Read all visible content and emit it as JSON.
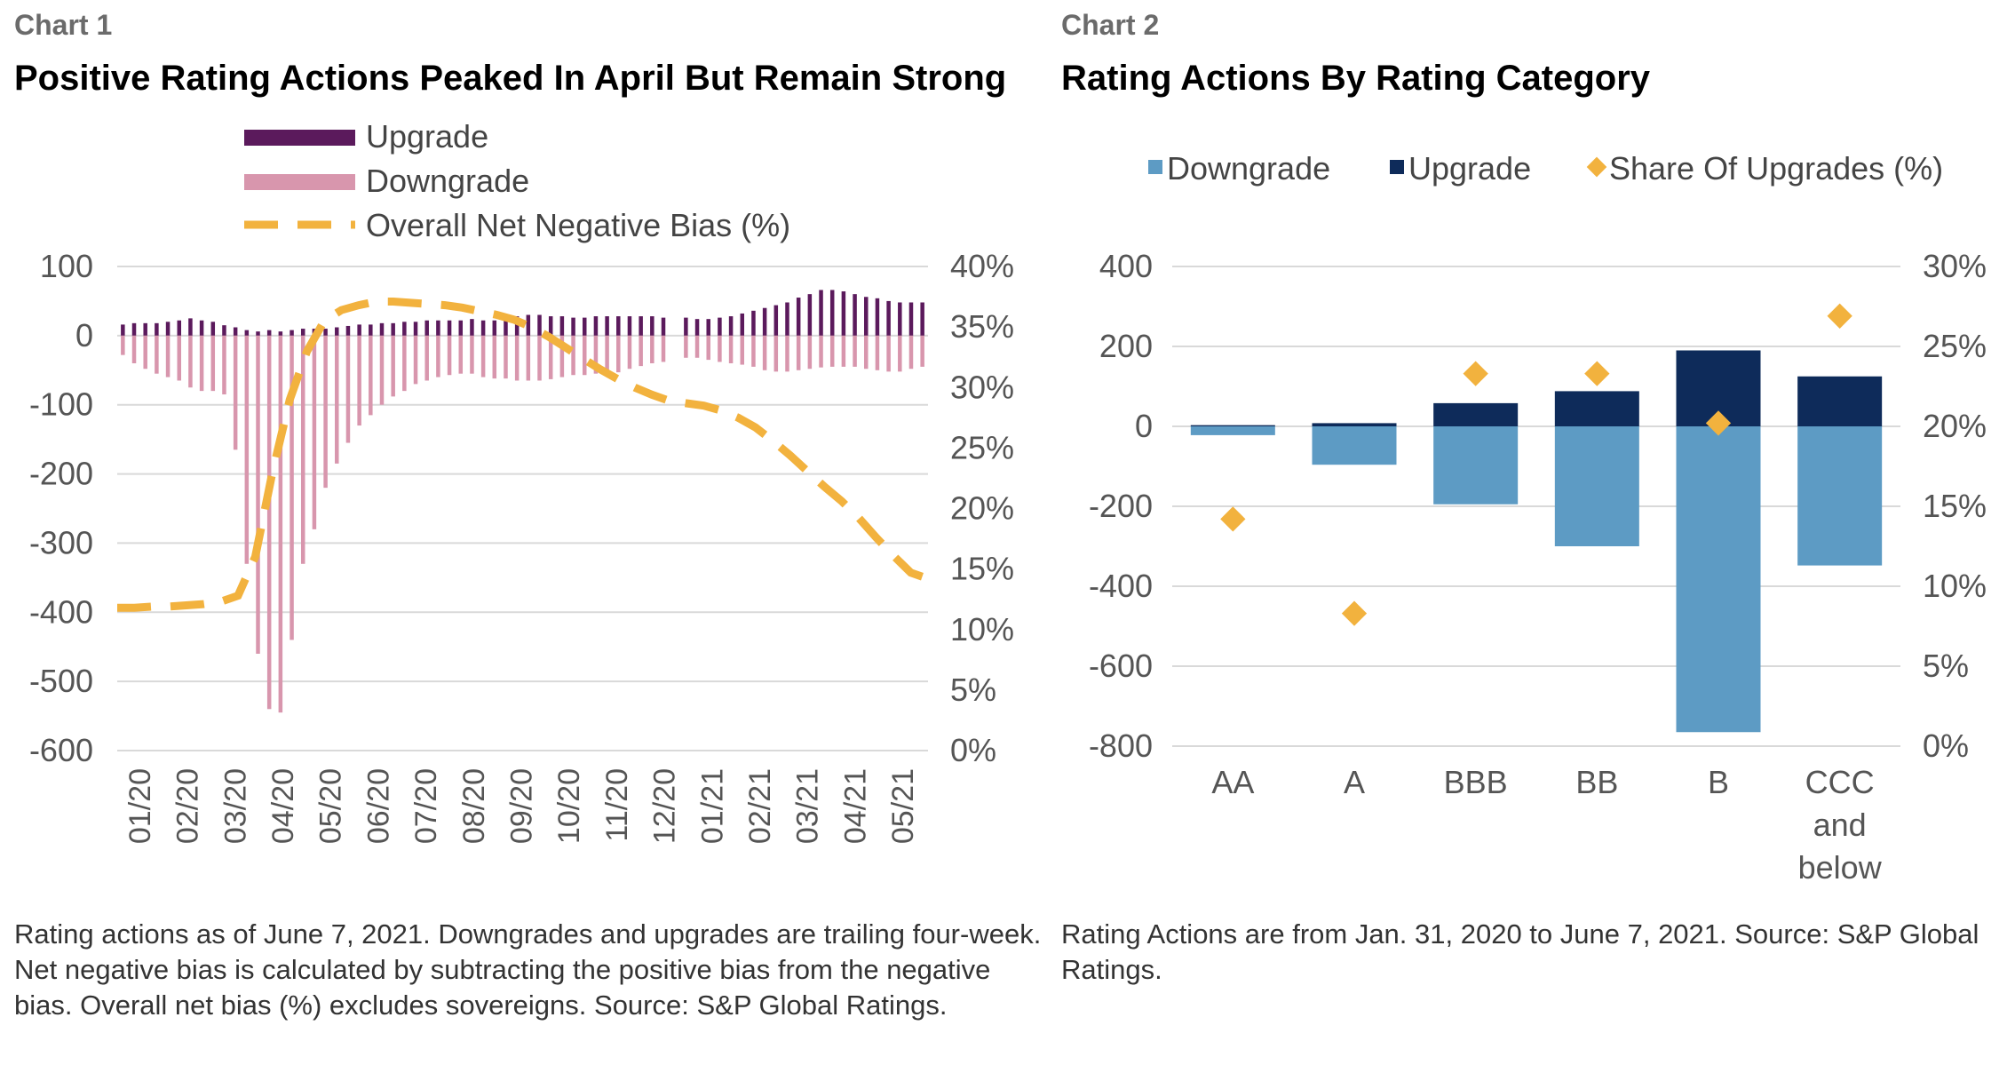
{
  "chart1": {
    "label": "Chart 1",
    "title": "Positive Rating Actions Peaked In April But Remain Strong",
    "note": "Rating actions as of June 7, 2021. Downgrades and upgrades are trailing four-week. Net negative bias is calculated by subtracting the positive bias from the negative bias. Overall net bias (%) excludes sovereigns. Source: S&P Global Ratings.",
    "legend": [
      "Upgrade",
      "Downgrade",
      "Overall Net Negative Bias (%)"
    ],
    "colors": {
      "upgrade": "#5b1a5c",
      "downgrade": "#d896ad",
      "bias": "#f2b23e",
      "grid": "#d9d9d9",
      "axis_text": "#555555"
    }
  },
  "chart2": {
    "label": "Chart 2",
    "title": "Rating Actions By Rating Category",
    "note": "Rating Actions are from Jan. 31, 2020 to June 7, 2021. Source: S&P Global Ratings.",
    "legend": [
      "Downgrade",
      "Upgrade",
      "Share Of Upgrades (%)"
    ],
    "colors": {
      "downgrade": "#5d9bc4",
      "upgrade": "#0e2b5a",
      "share": "#f2b23e",
      "grid": "#d9d9d9",
      "axis_text": "#555555"
    }
  },
  "chart_data": [
    {
      "type": "bar",
      "title": "Positive Rating Actions Peaked In April But Remain Strong",
      "x_tick_labels": [
        "01/20",
        "02/20",
        "03/20",
        "04/20",
        "05/20",
        "06/20",
        "07/20",
        "08/20",
        "09/20",
        "10/20",
        "11/20",
        "12/20",
        "01/21",
        "02/21",
        "03/21",
        "04/21",
        "05/21"
      ],
      "y_left": {
        "ticks": [
          "100",
          "0",
          "-100",
          "-200",
          "-300",
          "-400",
          "-500",
          "-600"
        ],
        "lim": [
          -600,
          100
        ]
      },
      "y_right": {
        "ticks": [
          "40%",
          "35%",
          "30%",
          "25%",
          "20%",
          "15%",
          "10%",
          "5%",
          "0%"
        ],
        "lim": [
          0,
          40
        ]
      },
      "series": [
        {
          "name": "Upgrade",
          "kind": "bar",
          "values": [
            16,
            18,
            18,
            18,
            20,
            22,
            25,
            22,
            20,
            15,
            12,
            8,
            6,
            8,
            6,
            8,
            10,
            10,
            10,
            12,
            14,
            16,
            16,
            18,
            18,
            20,
            20,
            22,
            22,
            22,
            22,
            24,
            22,
            22,
            24,
            28,
            30,
            30,
            28,
            28,
            26,
            26,
            28,
            28,
            28,
            28,
            28,
            28,
            26,
            0,
            26,
            24,
            24,
            26,
            28,
            32,
            36,
            40,
            44,
            48,
            55,
            60,
            66,
            66,
            64,
            60,
            56,
            54,
            50,
            48,
            48,
            48
          ]
        },
        {
          "name": "Downgrade",
          "kind": "bar",
          "values": [
            -28,
            -40,
            -48,
            -55,
            -60,
            -65,
            -75,
            -80,
            -80,
            -85,
            -165,
            -330,
            -460,
            -540,
            -545,
            -440,
            -330,
            -280,
            -220,
            -185,
            -155,
            -130,
            -115,
            -100,
            -88,
            -80,
            -70,
            -65,
            -60,
            -57,
            -55,
            -55,
            -60,
            -62,
            -62,
            -65,
            -65,
            -65,
            -63,
            -60,
            -57,
            -57,
            -55,
            -53,
            -53,
            -48,
            -44,
            -40,
            -38,
            0,
            -32,
            -32,
            -35,
            -38,
            -40,
            -42,
            -45,
            -50,
            -52,
            -52,
            -50,
            -48,
            -46,
            -45,
            -45,
            -45,
            -48,
            -50,
            -52,
            -52,
            -48,
            -45
          ]
        },
        {
          "name": "Overall Net Negative Bias (%)",
          "kind": "line",
          "values": [
            11.8,
            11.8,
            11.9,
            11.9,
            12.0,
            12.1,
            12.3,
            12.8,
            16,
            23,
            29,
            33,
            35.5,
            36.4,
            36.8,
            37.1,
            37.1,
            37.0,
            36.9,
            36.8,
            36.6,
            36.3,
            36.0,
            35.6,
            35.0,
            34.2,
            33.3,
            32.4,
            31.5,
            30.7,
            30.0,
            29.4,
            28.9,
            28.7,
            28.5,
            28.1,
            27.5,
            26.7,
            25.6,
            24.4,
            23.1,
            21.8,
            20.6,
            19.2,
            17.6,
            16.1,
            14.7,
            14.2
          ]
        }
      ]
    },
    {
      "type": "bar",
      "title": "Rating Actions By Rating Category",
      "categories": [
        "AA",
        "A",
        "BBB",
        "BB",
        "B",
        "CCC and below"
      ],
      "y_left": {
        "ticks": [
          "400",
          "200",
          "0",
          "-200",
          "-400",
          "-600",
          "-800"
        ],
        "lim": [
          -800,
          400
        ]
      },
      "y_right": {
        "ticks": [
          "30%",
          "25%",
          "20%",
          "15%",
          "10%",
          "5%",
          "0%"
        ],
        "lim": [
          0,
          30
        ]
      },
      "series": [
        {
          "name": "Downgrade",
          "kind": "bar",
          "values": [
            -22,
            -96,
            -195,
            -300,
            -765,
            -348
          ]
        },
        {
          "name": "Upgrade",
          "kind": "bar",
          "values": [
            3,
            8,
            58,
            88,
            190,
            125
          ]
        },
        {
          "name": "Share Of Upgrades (%)",
          "kind": "marker",
          "values": [
            14.2,
            8.3,
            23.3,
            23.3,
            20.2,
            26.9
          ]
        }
      ]
    }
  ]
}
